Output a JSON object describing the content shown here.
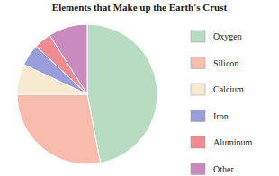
{
  "chart_data": {
    "type": "pie",
    "title": "Elements that Make up the Earth's Crust",
    "categories": [
      "Oxygen",
      "Silicon",
      "Calcium",
      "Iron",
      "Aluminum",
      "Other"
    ],
    "values": [
      47,
      28,
      7,
      5,
      4,
      9
    ],
    "colors": [
      "#b7dcc2",
      "#f7bcac",
      "#f6ead0",
      "#9a9ddc",
      "#ee8c92",
      "#c98abf"
    ],
    "legend": "right"
  }
}
